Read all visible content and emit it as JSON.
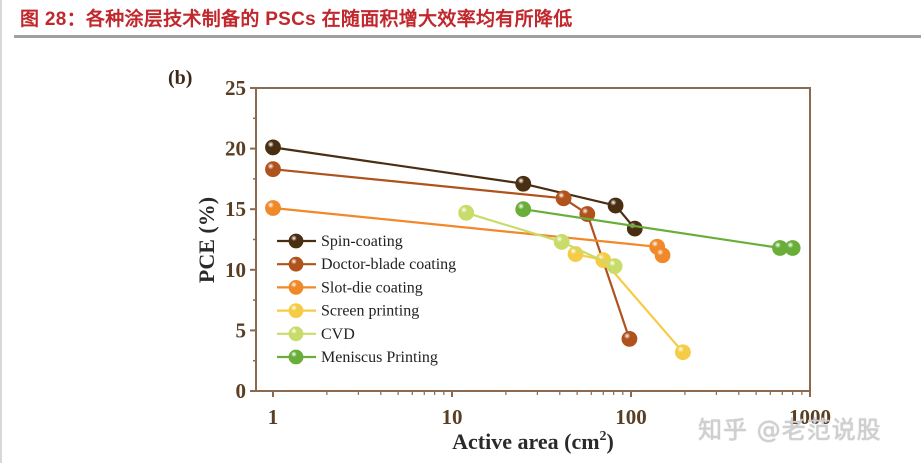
{
  "figure": {
    "title": "图 28：各种涂层技术制备的 PSCs 在随面积增大效率均有所降低",
    "panel_label": "(b)",
    "watermark": "知乎 @老范说股"
  },
  "chart_data": {
    "type": "line",
    "title": "",
    "xlabel": "Active area (cm²)",
    "ylabel": "PCE (%)",
    "xscale": "log",
    "xlim": [
      0.8,
      1000
    ],
    "ylim": [
      0,
      25
    ],
    "xticks": [
      "1",
      "10",
      "100",
      "1000"
    ],
    "yticks": [
      "0",
      "5",
      "10",
      "15",
      "20",
      "25"
    ],
    "legend_position": "lower left",
    "grid": false,
    "series": [
      {
        "name": "Spin-coating",
        "color": "#4a2e12",
        "points": [
          [
            1,
            20.1
          ],
          [
            25,
            17.1
          ],
          [
            82,
            15.3
          ],
          [
            105,
            13.4
          ]
        ]
      },
      {
        "name": "Doctor-blade coating",
        "color": "#b0521c",
        "points": [
          [
            1,
            18.3
          ],
          [
            42,
            15.9
          ],
          [
            57,
            14.6
          ],
          [
            98,
            4.3
          ]
        ]
      },
      {
        "name": "Slot-die coating",
        "color": "#f0892a",
        "points": [
          [
            1,
            15.1
          ],
          [
            140,
            11.9
          ],
          [
            150,
            11.2
          ]
        ]
      },
      {
        "name": "Screen printing",
        "color": "#f5cc45",
        "points": [
          [
            49,
            11.3
          ],
          [
            70,
            10.8
          ],
          [
            195,
            3.2
          ]
        ]
      },
      {
        "name": "CVD",
        "color": "#c8dc6a",
        "points": [
          [
            12,
            14.7
          ],
          [
            41,
            12.3
          ],
          [
            81,
            10.3
          ]
        ]
      },
      {
        "name": "Meniscus Printing",
        "color": "#6aae3a",
        "points": [
          [
            25,
            15.0
          ],
          [
            680,
            11.8
          ],
          [
            800,
            11.8
          ]
        ]
      }
    ]
  }
}
